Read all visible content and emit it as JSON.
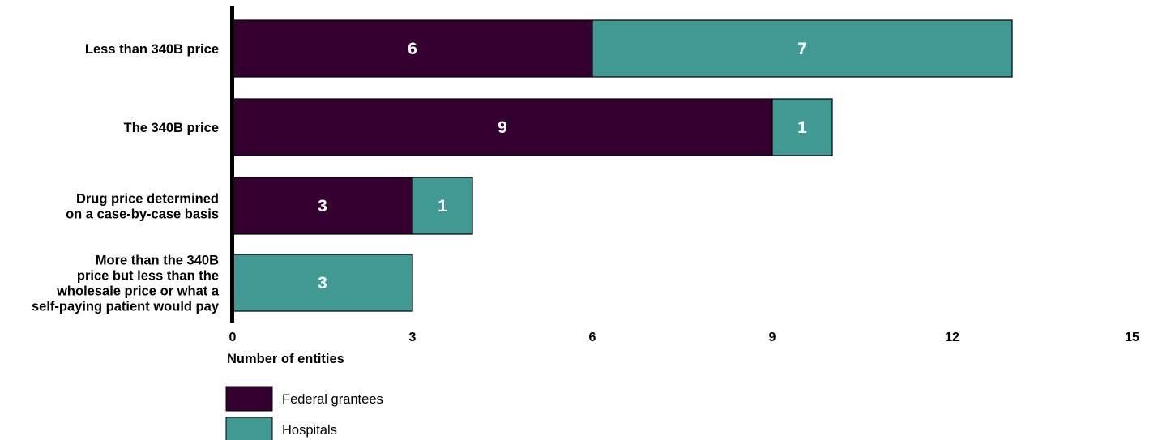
{
  "chart_data": {
    "type": "bar",
    "orientation": "horizontal",
    "stacked": true,
    "categories": [
      [
        "Less than 340B price"
      ],
      [
        "The 340B price"
      ],
      [
        "Drug price determined",
        "on a case-by-case basis"
      ],
      [
        "More than the 340B",
        "price but less than the",
        "wholesale price or what a",
        "self-paying patient would pay"
      ]
    ],
    "series": [
      {
        "name": "Federal grantees",
        "color": "#33002f",
        "values": [
          6,
          9,
          3,
          0
        ]
      },
      {
        "name": "Hospitals",
        "color": "#419993",
        "values": [
          7,
          1,
          1,
          3
        ]
      }
    ],
    "xlabel": "Number of entities",
    "xlim": [
      0,
      15
    ],
    "xticks": [
      "0",
      "3",
      "6",
      "9",
      "12",
      "15"
    ],
    "grid": false,
    "legend_position": "bottom-left"
  }
}
